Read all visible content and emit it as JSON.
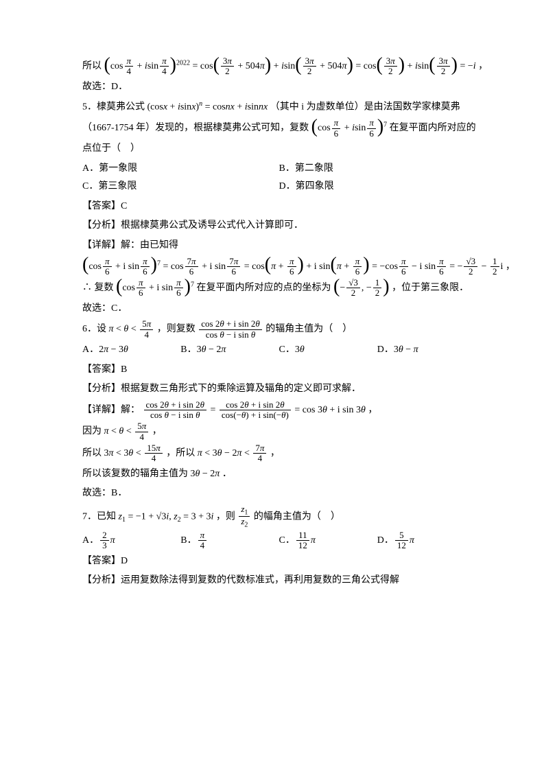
{
  "colors": {
    "text": "#000000",
    "bg": "#ffffff"
  },
  "font": {
    "body": "SimSun",
    "math": "Times New Roman",
    "size_body": 14,
    "size_math_sup": 10
  },
  "p4_tail": {
    "prefix": "所以",
    "lhs_exp": "2022",
    "step1_arg": "3π/2 + 504π",
    "step2_arg": "3π/2",
    "result_eq": "= −i ，",
    "conclusion": "故选：D．"
  },
  "q5": {
    "number": "5．",
    "stem1": "棣莫弗公式 (cos x + i sin x)ⁿ = cos nx + i sin nx （其中 i 为虚数单位）是由法国数学家棣莫弗",
    "stem2_a": "（1667-1754 年）发现的，根据棣莫弗公式可知，复数",
    "stem2_exp": "7",
    "stem2_b": "在复平面内所对应的",
    "stem3": "点位于（　）",
    "options": {
      "A": "A．第一象限",
      "B": "B．第二象限",
      "C": "C．第三象限",
      "D": "D．第四象限"
    },
    "answer_label": "【答案】",
    "answer": "C",
    "analysis_label": "【分析】",
    "analysis": "根据棣莫弗公式及诱导公式代入计算即可．",
    "detail_label": "【详解】",
    "detail_intro": "解：由已知得",
    "detail_calc_exp": "7",
    "detail_final_re": "−√3/2",
    "detail_final_im": "−1/2",
    "therefore_a": "∴ 复数",
    "therefore_b": "在复平面内所对应的点的坐标为",
    "therefore_c": "，位于第三象限．",
    "conclusion": "故选：C．"
  },
  "q6": {
    "number": "6．",
    "stem_a": "设",
    "stem_range": "π < θ < 5π/4",
    "stem_b": "，则复数",
    "stem_expr_num": "cos 2θ + i sin 2θ",
    "stem_expr_den": "cos θ − i sin θ",
    "stem_c": "的辐角主值为（　）",
    "options": {
      "A": "A．2π − 3θ",
      "B": "B．3θ − 2π",
      "C": "C．3θ",
      "D": "D．3θ − π"
    },
    "answer_label": "【答案】",
    "answer": "B",
    "analysis_label": "【分析】",
    "analysis": "根据复数三角形式下的乘除运算及辐角的定义即可求解．",
    "detail_label": "【详解】",
    "detail_a": "解：",
    "detail_result": "= cos 3θ + i sin 3θ ，",
    "because": "因为",
    "so1_a": "所以",
    "so1_r1": "3π < 3θ < 15π/4",
    "so1_mid": "，所以",
    "so1_r2": "π < 3θ − 2π < 7π/4",
    "so1_end": "，",
    "so2": "所以该复数的辐角主值为 3θ − 2π．",
    "conclusion": "故选：B．"
  },
  "q7": {
    "number": "7．",
    "stem_a": "已知",
    "z1": "z₁ = −1 + √3 i,  z₂ = 3 + 3i",
    "stem_b": "，则",
    "ratio": "z₁/z₂",
    "stem_c": "的幅角主值为（　）",
    "options": {
      "A": "A．(2/3)π",
      "B": "B．π/4",
      "C": "C．(11/12)π",
      "D": "D．(5/12)π"
    },
    "answer_label": "【答案】",
    "answer": "D",
    "analysis_label": "【分析】",
    "analysis": "运用复数除法得到复数的代数标准式，再利用复数的三角公式得解"
  }
}
